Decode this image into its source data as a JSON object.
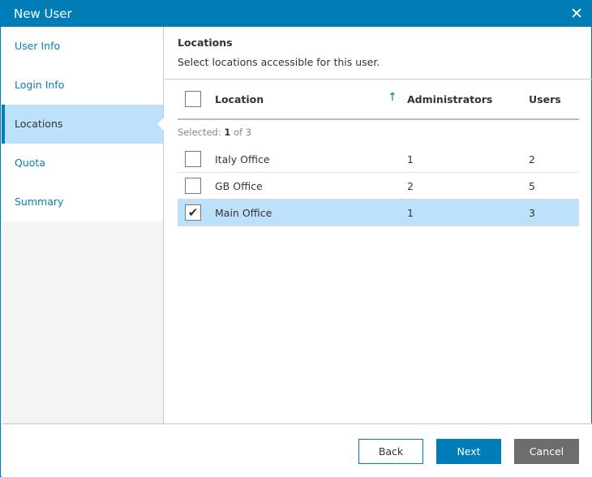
{
  "window": {
    "title": "New User"
  },
  "sidebar": {
    "items": [
      {
        "label": "User Info"
      },
      {
        "label": "Login Info"
      },
      {
        "label": "Locations",
        "active": true
      },
      {
        "label": "Quota"
      },
      {
        "label": "Summary"
      }
    ]
  },
  "main": {
    "heading": "Locations",
    "subtitle": "Select locations accessible for this user.",
    "columns": {
      "location": "Location",
      "administrators": "Administrators",
      "users": "Users"
    },
    "sort": {
      "column": "Location",
      "direction": "ascending"
    },
    "selected": {
      "prefix": "Selected:",
      "count": "1",
      "suffix": "of 3"
    },
    "rows": [
      {
        "location": "Italy Office",
        "administrators": "1",
        "users": "2",
        "checked": false
      },
      {
        "location": "GB Office",
        "administrators": "2",
        "users": "5",
        "checked": false
      },
      {
        "location": "Main Office",
        "administrators": "1",
        "users": "3",
        "checked": true
      }
    ]
  },
  "footer": {
    "back": "Back",
    "next": "Next",
    "cancel": "Cancel"
  },
  "colors": {
    "accent": "#007cb7",
    "selection": "#bde0fb",
    "cancel": "#6d6d6d"
  }
}
